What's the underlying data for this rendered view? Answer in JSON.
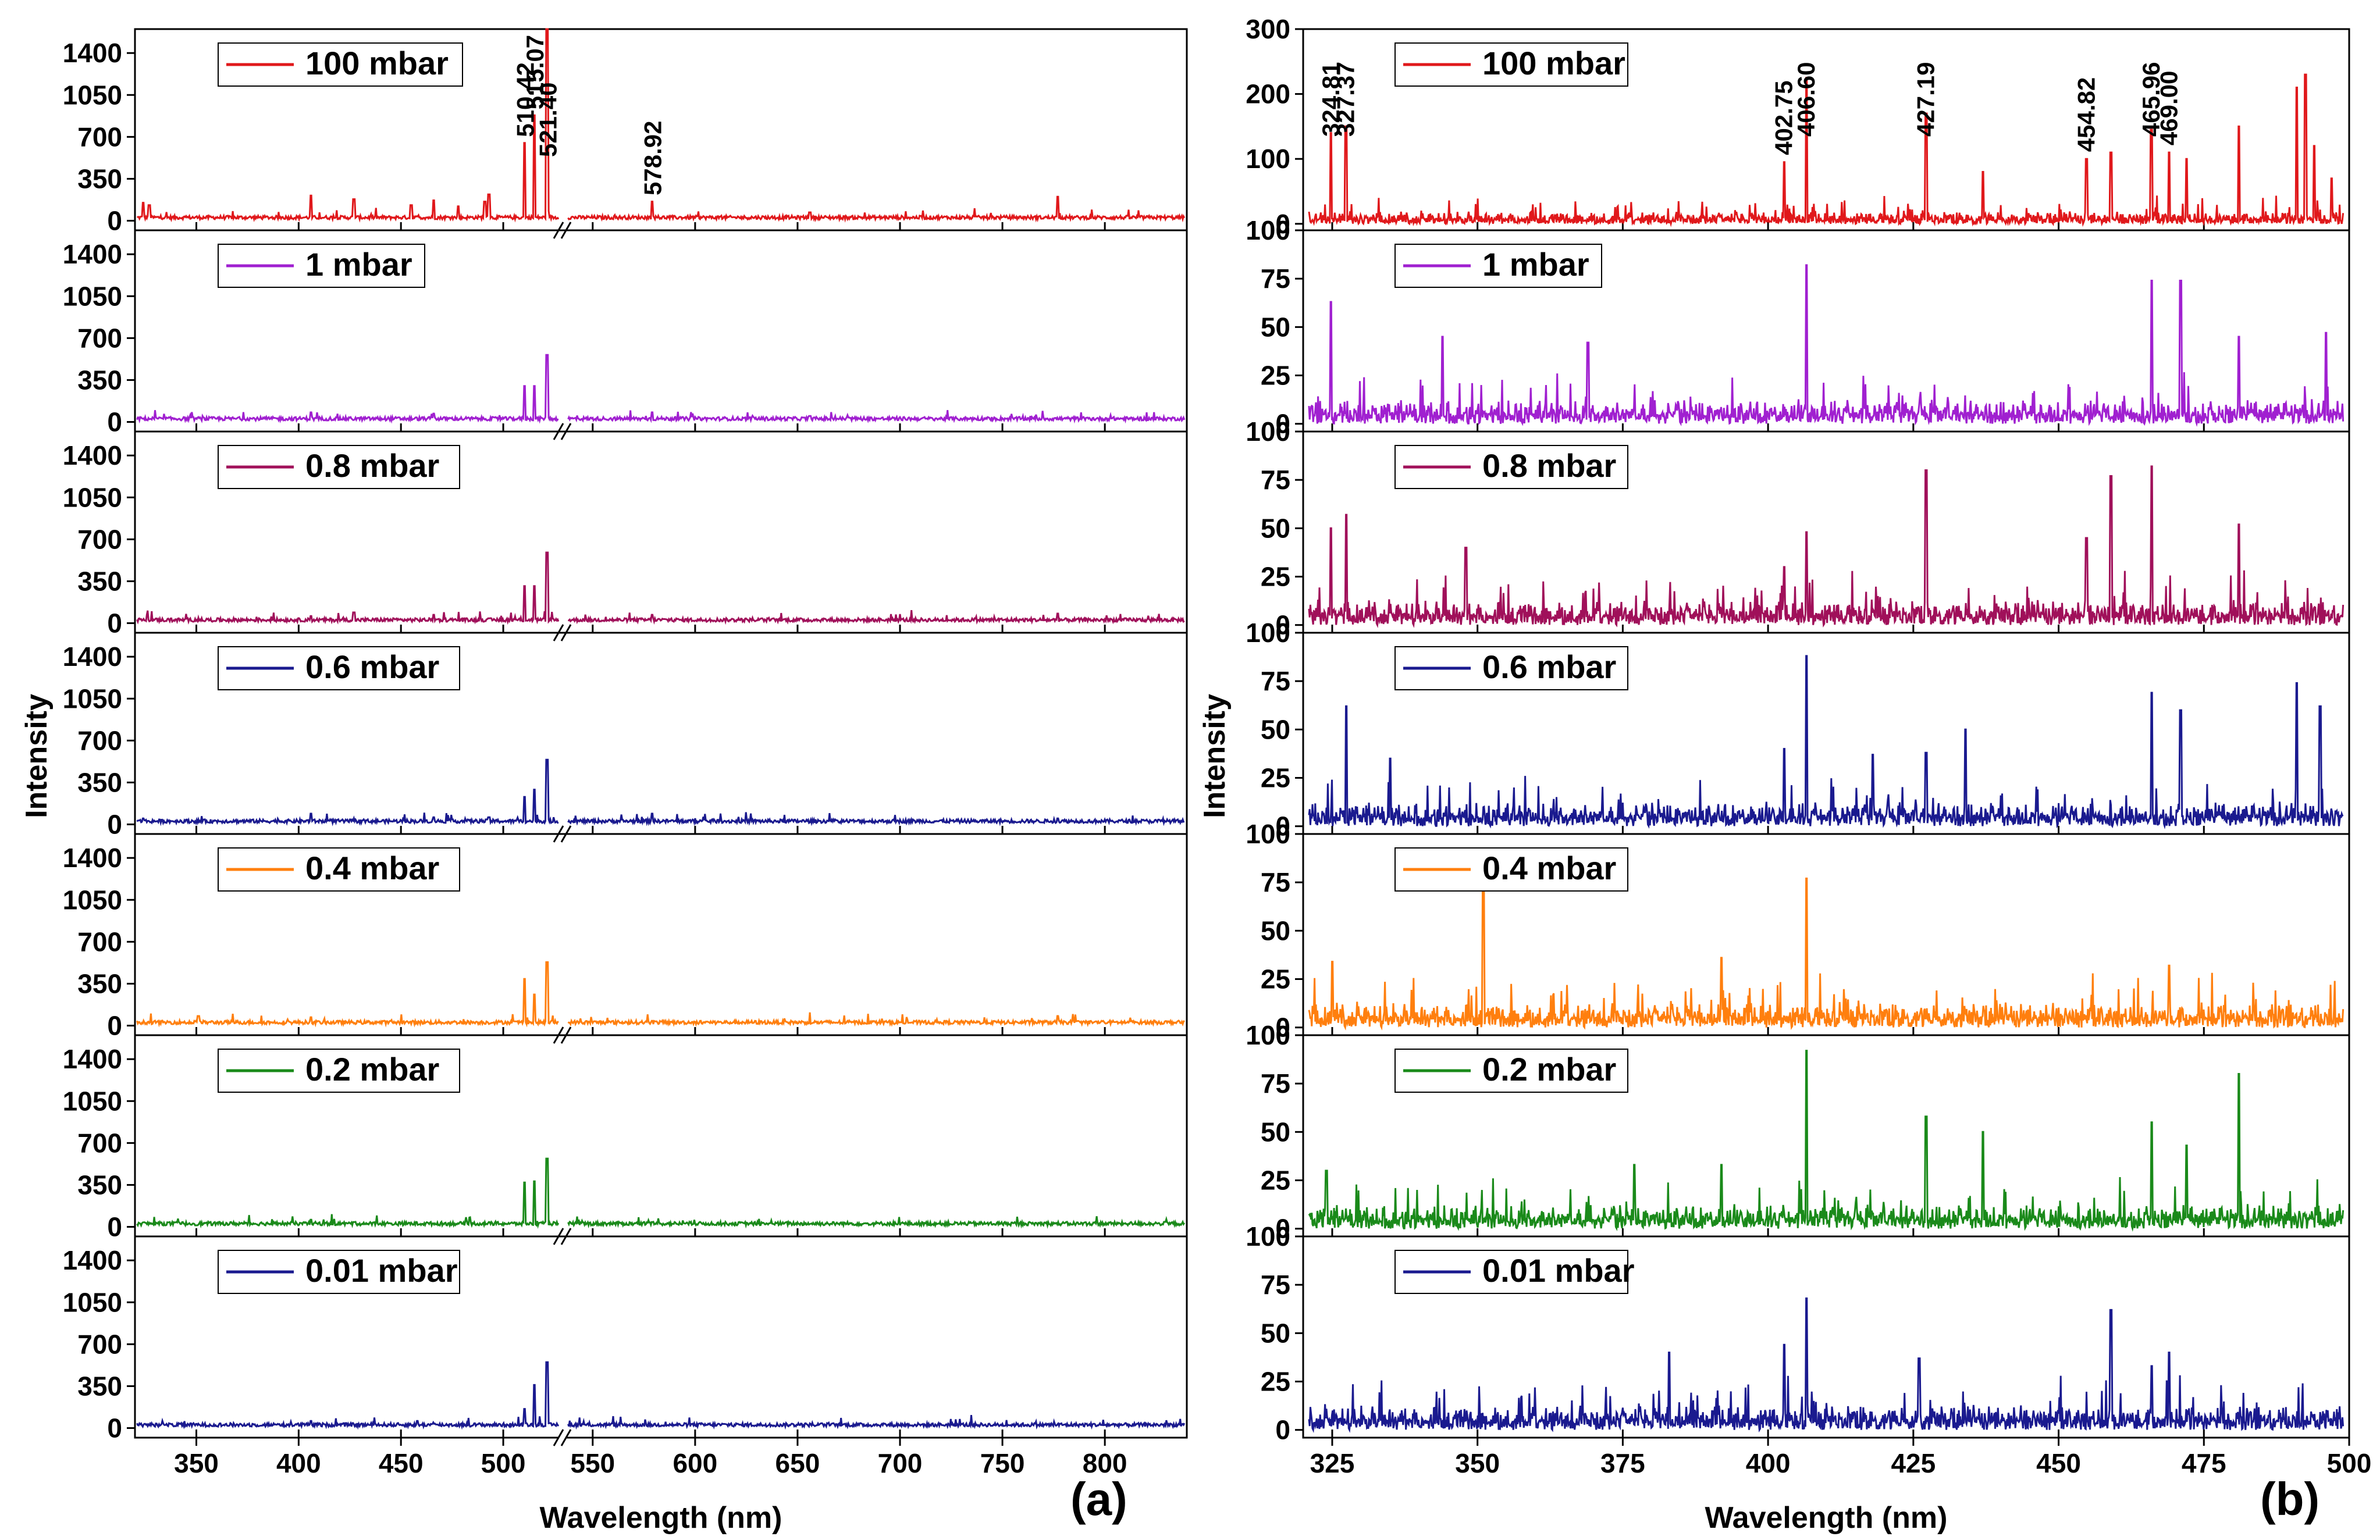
{
  "figure": {
    "panel_a_label": "(a)",
    "panel_b_label": "(b)"
  },
  "chart_data": [
    {
      "id": "a",
      "type": "line",
      "panel_label": "(a)",
      "xlabel": "Wavelength (nm)",
      "ylabel": "Intensity",
      "x_axis_break": [
        527,
        537
      ],
      "xlim_left": [
        320,
        527
      ],
      "xlim_right": [
        537,
        840
      ],
      "xticks_left": [
        350,
        400,
        450,
        500
      ],
      "xticks_right": [
        550,
        600,
        650,
        700,
        750,
        800
      ],
      "ylim": [
        -80,
        1600
      ],
      "yticks": [
        0,
        350,
        700,
        1050,
        1400
      ],
      "series": [
        {
          "name": "100 mbar",
          "legend": "100 mbar",
          "color": "#e0181b",
          "peaks": [
            [
              324,
              150
            ],
            [
              327,
              130
            ],
            [
              406,
              210
            ],
            [
              427,
              180
            ],
            [
              455,
              130
            ],
            [
              466,
              170
            ],
            [
              478,
              120
            ],
            [
              491,
              160
            ],
            [
              493,
              220
            ],
            [
              510.42,
              650
            ],
            [
              515.07,
              880
            ],
            [
              521.4,
              1600
            ],
            [
              578.92,
              160
            ],
            [
              656,
              70
            ],
            [
              777,
              200
            ],
            [
              710,
              40
            ]
          ],
          "annotations": [
            {
              "x": 510.42,
              "label": "510.42"
            },
            {
              "x": 515.07,
              "label": "515.07"
            },
            {
              "x": 521.4,
              "label": "521.40"
            },
            {
              "x": 578.92,
              "label": "578.92"
            }
          ]
        },
        {
          "name": "1 mbar",
          "legend": "1 mbar",
          "color": "#a020d0",
          "peaks": [
            [
              406,
              80
            ],
            [
              466,
              70
            ],
            [
              510.4,
              300
            ],
            [
              515.1,
              300
            ],
            [
              521.4,
              560
            ],
            [
              578.9,
              80
            ],
            [
              656,
              50
            ]
          ]
        },
        {
          "name": "0.8 mbar",
          "legend": "0.8 mbar",
          "color": "#a0105a",
          "peaks": [
            [
              406,
              60
            ],
            [
              427,
              90
            ],
            [
              466,
              70
            ],
            [
              510.4,
              310
            ],
            [
              515.1,
              310
            ],
            [
              521.4,
              590
            ],
            [
              578.9,
              70
            ],
            [
              777,
              80
            ]
          ]
        },
        {
          "name": "0.6 mbar",
          "legend": "0.6 mbar",
          "color": "#1a1a8f",
          "peaks": [
            [
              324,
              50
            ],
            [
              406,
              90
            ],
            [
              466,
              60
            ],
            [
              493,
              60
            ],
            [
              510.4,
              230
            ],
            [
              515.1,
              290
            ],
            [
              521.4,
              540
            ],
            [
              578.9,
              90
            ],
            [
              777,
              50
            ]
          ]
        },
        {
          "name": "0.4 mbar",
          "legend": "0.4 mbar",
          "color": "#ff7f0e",
          "peaks": [
            [
              351,
              80
            ],
            [
              406,
              70
            ],
            [
              510.4,
              390
            ],
            [
              515.1,
              260
            ],
            [
              521.4,
              530
            ],
            [
              578.9,
              40
            ],
            [
              777,
              80
            ]
          ]
        },
        {
          "name": "0.2 mbar",
          "legend": "0.2 mbar",
          "color": "#1a8a1a",
          "peaks": [
            [
              406,
              60
            ],
            [
              427,
              40
            ],
            [
              482,
              50
            ],
            [
              510.4,
              370
            ],
            [
              515.1,
              380
            ],
            [
              521.4,
              570
            ],
            [
              578.9,
              40
            ]
          ]
        },
        {
          "name": "0.01 mbar",
          "legend": "0.01 mbar",
          "color": "#1a1a8f",
          "peaks": [
            [
              406,
              60
            ],
            [
              458,
              60
            ],
            [
              510.4,
              160
            ],
            [
              515.1,
              360
            ],
            [
              521.4,
              550
            ]
          ]
        }
      ]
    },
    {
      "id": "b",
      "type": "line",
      "panel_label": "(b)",
      "xlabel": "Wavelength (nm)",
      "ylabel": "Intensity",
      "xlim": [
        320,
        500
      ],
      "xticks": [
        325,
        350,
        375,
        400,
        425,
        450,
        475,
        500
      ],
      "series": [
        {
          "name": "100 mbar",
          "legend": "100 mbar",
          "color": "#e0181b",
          "ylim": [
            -10,
            300
          ],
          "yticks": [
            0,
            100,
            200,
            300
          ],
          "peaks": [
            [
              324.81,
              140
            ],
            [
              327.37,
              150
            ],
            [
              402.75,
              95
            ],
            [
              406.6,
              225
            ],
            [
              427.19,
              170
            ],
            [
              437,
              80
            ],
            [
              454.82,
              100
            ],
            [
              459,
              110
            ],
            [
              465.96,
              145
            ],
            [
              469,
              110
            ],
            [
              472,
              100
            ],
            [
              481,
              150
            ],
            [
              491,
              210
            ],
            [
              492.5,
              230
            ],
            [
              494,
              120
            ],
            [
              497,
              70
            ]
          ],
          "annotations": [
            {
              "x": 324.81,
              "label": "324.81"
            },
            {
              "x": 327.37,
              "label": "327.37"
            },
            {
              "x": 402.75,
              "label": "402.75"
            },
            {
              "x": 406.6,
              "label": "406.60"
            },
            {
              "x": 427.19,
              "label": "427.19"
            },
            {
              "x": 454.82,
              "label": "454.82"
            },
            {
              "x": 465.96,
              "label": "465.96"
            },
            {
              "x": 469.0,
              "label": "469.00"
            }
          ]
        },
        {
          "name": "1 mbar",
          "legend": "1 mbar",
          "color": "#a020d0",
          "ylim": [
            -4,
            100
          ],
          "yticks": [
            0,
            25,
            50,
            75,
            100
          ],
          "peaks": [
            [
              324.8,
              63
            ],
            [
              344,
              45
            ],
            [
              369,
              42
            ],
            [
              406.6,
              82
            ],
            [
              466,
              74
            ],
            [
              471,
              74
            ],
            [
              481,
              45
            ],
            [
              496,
              47
            ]
          ]
        },
        {
          "name": "0.8 mbar",
          "legend": "0.8 mbar",
          "color": "#a0105a",
          "ylim": [
            -4,
            100
          ],
          "yticks": [
            0,
            25,
            50,
            75,
            100
          ],
          "peaks": [
            [
              324.8,
              50
            ],
            [
              327.4,
              57
            ],
            [
              348,
              40
            ],
            [
              402.8,
              30
            ],
            [
              406.6,
              48
            ],
            [
              427.2,
              80
            ],
            [
              454.8,
              45
            ],
            [
              459,
              77
            ],
            [
              466,
              82
            ],
            [
              481,
              52
            ]
          ]
        },
        {
          "name": "0.6 mbar",
          "legend": "0.6 mbar",
          "color": "#1a1a8f",
          "ylim": [
            -4,
            100
          ],
          "yticks": [
            0,
            25,
            50,
            75,
            100
          ],
          "peaks": [
            [
              327.4,
              62
            ],
            [
              335,
              35
            ],
            [
              402.8,
              40
            ],
            [
              406.6,
              88
            ],
            [
              418,
              37
            ],
            [
              427.2,
              38
            ],
            [
              434,
              50
            ],
            [
              466,
              69
            ],
            [
              471,
              60
            ],
            [
              491,
              74
            ],
            [
              495,
              62
            ]
          ]
        },
        {
          "name": "0.4 mbar",
          "legend": "0.4 mbar",
          "color": "#ff7f0e",
          "ylim": [
            -4,
            100
          ],
          "yticks": [
            0,
            25,
            50,
            75,
            100
          ],
          "peaks": [
            [
              325,
              34
            ],
            [
              351,
              70
            ],
            [
              392,
              36
            ],
            [
              406.6,
              77
            ],
            [
              469,
              32
            ]
          ]
        },
        {
          "name": "0.2 mbar",
          "legend": "0.2 mbar",
          "color": "#1a8a1a",
          "ylim": [
            -4,
            100
          ],
          "yticks": [
            0,
            25,
            50,
            75,
            100
          ],
          "peaks": [
            [
              324,
              30
            ],
            [
              377,
              33
            ],
            [
              392,
              33
            ],
            [
              406.6,
              92
            ],
            [
              427.2,
              58
            ],
            [
              437,
              50
            ],
            [
              466,
              55
            ],
            [
              472,
              43
            ],
            [
              481,
              80
            ]
          ]
        },
        {
          "name": "0.01 mbar",
          "legend": "0.01 mbar",
          "color": "#1a1a8f",
          "ylim": [
            -4,
            100
          ],
          "yticks": [
            0,
            25,
            50,
            75,
            100
          ],
          "peaks": [
            [
              383,
              40
            ],
            [
              402.8,
              44
            ],
            [
              406.6,
              68
            ],
            [
              426,
              37
            ],
            [
              459,
              62
            ],
            [
              466,
              33
            ],
            [
              469,
              40
            ]
          ]
        }
      ]
    }
  ]
}
